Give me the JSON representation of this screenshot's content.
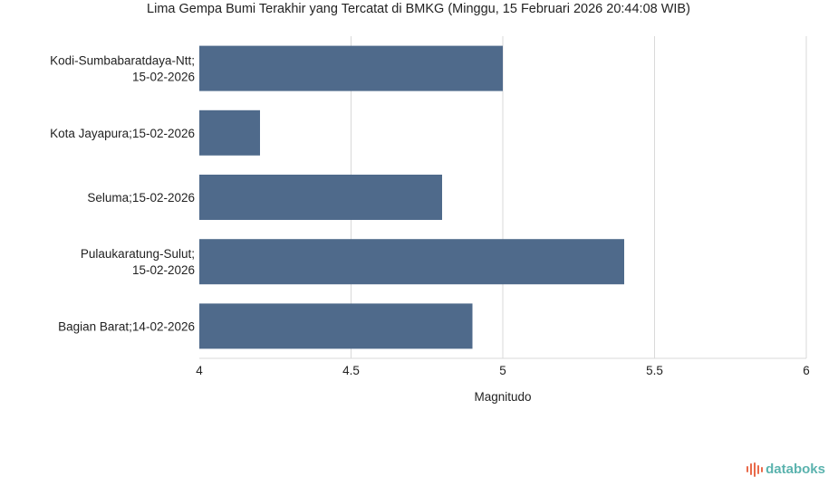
{
  "chart_data": {
    "type": "bar",
    "orientation": "horizontal",
    "title": "Lima Gempa Bumi Terakhir yang Tercatat di BMKG (Minggu, 15 Februari 2026 20:44:08 WIB)",
    "xlabel": "Magnitudo",
    "ylabel": "",
    "categories": [
      [
        "Kodi-Sumbabaratdaya-Ntt;",
        "15-02-2026"
      ],
      [
        "Kota Jayapura;15-02-2026"
      ],
      [
        "Seluma;15-02-2026"
      ],
      [
        "Pulaukaratung-Sulut;",
        "15-02-2026"
      ],
      [
        "Bagian Barat;14-02-2026"
      ]
    ],
    "values": [
      5.0,
      4.2,
      4.8,
      5.4,
      4.9
    ],
    "xlim": [
      4,
      6
    ],
    "xticks": [
      "4",
      "4.5",
      "5",
      "5.5",
      "6"
    ],
    "grid": true,
    "legend": "none",
    "colors": {
      "bar": "#4f6a8b",
      "grid": "#d9d9d9",
      "text": "#222222"
    }
  },
  "brand": {
    "name": "databoks",
    "icon": "databoks-bars-icon",
    "color": "#5bb3ae",
    "icon_color": "#e96a4a"
  }
}
